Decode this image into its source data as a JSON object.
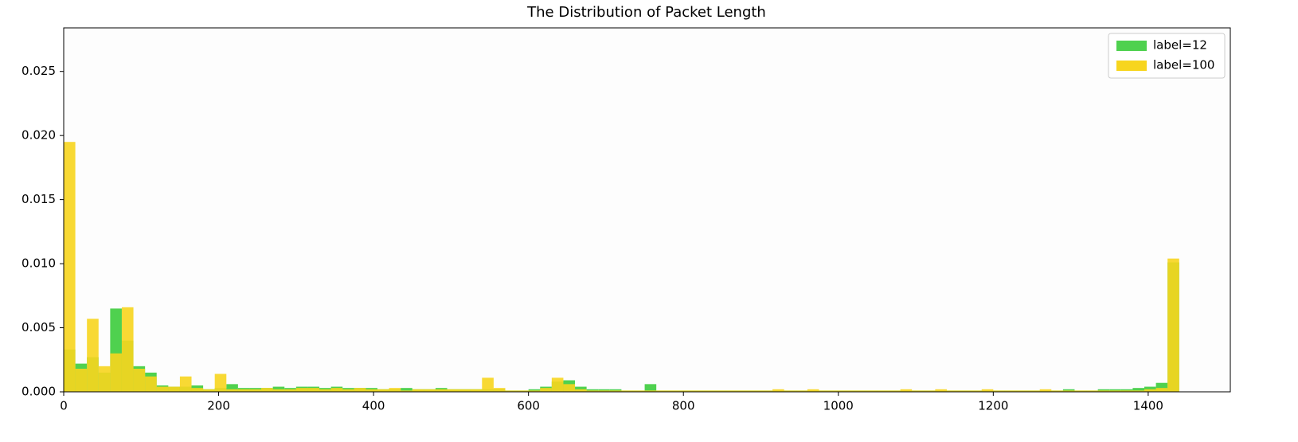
{
  "chart_data": {
    "type": "histogram",
    "title": "The Distribution of Packet Length",
    "bins": [
      0,
      15,
      30,
      45,
      60,
      75,
      90,
      105,
      120,
      135,
      150,
      165,
      180,
      195,
      210,
      225,
      240,
      255,
      270,
      285,
      300,
      315,
      330,
      345,
      360,
      375,
      390,
      405,
      420,
      435,
      450,
      465,
      480,
      495,
      510,
      525,
      540,
      555,
      570,
      585,
      600,
      615,
      630,
      645,
      660,
      675,
      690,
      705,
      720,
      735,
      750,
      765,
      780,
      795,
      810,
      825,
      840,
      855,
      870,
      885,
      900,
      915,
      930,
      945,
      960,
      975,
      990,
      1005,
      1020,
      1035,
      1050,
      1065,
      1080,
      1095,
      1110,
      1125,
      1140,
      1155,
      1170,
      1185,
      1200,
      1215,
      1230,
      1245,
      1260,
      1275,
      1290,
      1305,
      1320,
      1335,
      1350,
      1365,
      1380,
      1395,
      1410,
      1425,
      1440
    ],
    "series": [
      {
        "name": "label=12",
        "color": "#4fd14f",
        "values": [
          0.0033,
          0.0022,
          0.0027,
          0.0015,
          0.0065,
          0.004,
          0.002,
          0.0015,
          0.0005,
          0.0004,
          0.0004,
          0.0005,
          0.0002,
          0.0003,
          0.0006,
          0.0003,
          0.0003,
          0.0003,
          0.0004,
          0.0003,
          0.0004,
          0.0004,
          0.0003,
          0.0004,
          0.0003,
          0.0003,
          0.0003,
          0.0002,
          0.0002,
          0.0003,
          0.0002,
          0.0002,
          0.0003,
          0.0002,
          0.0002,
          0.0002,
          0.0002,
          0.0002,
          0.0001,
          0.0001,
          0.0002,
          0.0004,
          0.0008,
          0.0009,
          0.0004,
          0.0002,
          0.0002,
          0.0002,
          0.0001,
          0.0001,
          0.0006,
          0.0001,
          0.0001,
          0.0001,
          0.0001,
          0.0001,
          0.0001,
          0.0001,
          0.0001,
          0.0001,
          0.0001,
          0.0001,
          0.0001,
          0.0001,
          0.0001,
          0.0001,
          0.0001,
          0.0001,
          0.0001,
          0.0001,
          0.0001,
          0.0001,
          0.0001,
          0.0001,
          0.0001,
          0.0001,
          0.0001,
          0.0001,
          0.0001,
          0.0001,
          0.0001,
          0.0001,
          0.0001,
          0.0001,
          0.0001,
          0.0001,
          0.0002,
          0.0001,
          0.0001,
          0.0002,
          0.0002,
          0.0002,
          0.0003,
          0.0004,
          0.0007,
          0.0101
        ]
      },
      {
        "name": "label=100",
        "color": "#f7d51e",
        "values": [
          0.0195,
          0.0018,
          0.0057,
          0.002,
          0.003,
          0.0066,
          0.0018,
          0.0012,
          0.0004,
          0.0004,
          0.0012,
          0.0003,
          0.0002,
          0.0014,
          0.0002,
          0.0002,
          0.0002,
          0.0003,
          0.0002,
          0.0002,
          0.0003,
          0.0003,
          0.0002,
          0.0003,
          0.0002,
          0.0003,
          0.0002,
          0.0002,
          0.0003,
          0.0001,
          0.0002,
          0.0002,
          0.0002,
          0.0002,
          0.0002,
          0.0002,
          0.0011,
          0.0003,
          0.0001,
          0.0001,
          0.0001,
          0.0003,
          0.0011,
          0.0006,
          0.0002,
          0.0001,
          0.0001,
          0.0001,
          0.0001,
          0.0001,
          0.0001,
          0.0001,
          0.0001,
          0.0001,
          0.0001,
          0.0001,
          0.0001,
          0.0001,
          0.0001,
          0.0001,
          0.0001,
          0.0002,
          0.0001,
          0.0001,
          0.0002,
          0.0001,
          0.0001,
          0.0001,
          0.0001,
          0.0001,
          0.0001,
          0.0001,
          0.0002,
          0.0001,
          0.0001,
          0.0002,
          0.0001,
          0.0001,
          0.0001,
          0.0002,
          0.0001,
          0.0001,
          0.0001,
          0.0001,
          0.0002,
          0.0001,
          0.0001,
          0.0001,
          0.0001,
          0.0001,
          0.0001,
          0.0001,
          0.0001,
          0.0002,
          0.0003,
          0.0104
        ]
      }
    ],
    "xlim": [
      0,
      1506
    ],
    "ylim": [
      0,
      0.0284
    ],
    "xticks": [
      0,
      200,
      400,
      600,
      800,
      1000,
      1200,
      1400
    ],
    "yticks": [
      {
        "value": 0,
        "label": "0.000"
      },
      {
        "value": 0.005,
        "label": "0.005"
      },
      {
        "value": 0.01,
        "label": "0.010"
      },
      {
        "value": 0.015,
        "label": "0.015"
      },
      {
        "value": 0.02,
        "label": "0.020"
      },
      {
        "value": 0.025,
        "label": "0.025"
      }
    ],
    "legend": "upper right"
  }
}
